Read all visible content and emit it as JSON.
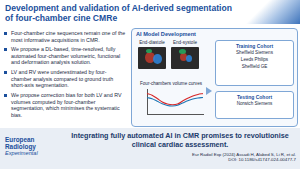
{
  "header": {
    "title": "Development and validation of AI-derived segmentation of four-chamber cine CMRe"
  },
  "bullets": [
    "Four-chamber cine sequences remain one of the most informative acquisitions in CMR.",
    "We propose a DL-based, time-resolved, fully automated four-chamber volumetric, functional and deformation analysis solution.",
    "LV and RV were underestimated by four-chamber analysis compared to ground truth short-axis segmentation.",
    "We propose correction bias for both LV and RV volumes computed by four-chamber segmentation, which minimises the systematic bias."
  ],
  "panel": {
    "title": "AI Model Development",
    "images": [
      "End-diastole",
      "End-systole"
    ],
    "training": {
      "title": "Training Cohort",
      "sites": [
        "Sheffield Siemens",
        "Leeds Philips",
        "Sheffield GE"
      ]
    },
    "testing": {
      "title": "Testing Cohort",
      "sites": [
        "Norwich Siemens"
      ]
    }
  },
  "chart_data": {
    "type": "line",
    "title": "Four-chambers volume curves",
    "categories": [
      null,
      null,
      null,
      null,
      null,
      null,
      null,
      null,
      null,
      null,
      null,
      null
    ],
    "series": [
      {
        "color": "#d62728",
        "values": [
          82,
          75,
          62,
          48,
          40,
          37,
          40,
          52,
          63,
          72,
          78,
          82
        ]
      },
      {
        "color": "#1f77b4",
        "values": [
          66,
          61,
          51,
          41,
          34,
          32,
          35,
          44,
          53,
          60,
          64,
          66
        ]
      }
    ],
    "ylim": [
      0,
      100
    ],
    "grid": false,
    "tick_labels": false
  },
  "footer": {
    "journal": "European Radiology",
    "subjournal": "Experimental",
    "takeaway": "Integrating fully automated AI in CMR promises to revolutionise clinical cardiac assessment.",
    "citation": [
      "Eur Radiol Exp (2024) Assadi H, Alabed S, Li R, et al.",
      "DOI: 10.1186/s41747-024-00477-7"
    ]
  }
}
